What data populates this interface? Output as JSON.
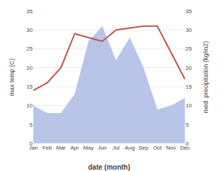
{
  "chart_data": {
    "type": "line",
    "xlabel": "date (month)",
    "ylabel": "max temp (C)",
    "y2label": "med. precipitation (kg/m2)",
    "categories": [
      "Jan",
      "Feb",
      "Mar",
      "Apr",
      "May",
      "Jun",
      "Jul",
      "Aug",
      "Sep",
      "Oct",
      "Nov",
      "Dec"
    ],
    "series": [
      {
        "type": "area",
        "color": "#b8c4e8",
        "values": [
          10,
          8,
          8,
          13,
          27,
          31,
          22,
          28,
          20,
          9,
          10,
          12
        ]
      },
      {
        "type": "line",
        "color": "#c0504d",
        "axis": "y2",
        "values": [
          14,
          16,
          20,
          29,
          28,
          27,
          30,
          30.5,
          31,
          31,
          24,
          17
        ]
      }
    ],
    "ylim": [
      0,
      35
    ],
    "yticks": [
      0,
      5,
      10,
      15,
      20,
      25,
      30,
      35
    ],
    "y2lim": [
      0,
      35
    ],
    "y2ticks": [
      0,
      5,
      10,
      15,
      20,
      25,
      30,
      35
    ],
    "grid": true
  }
}
